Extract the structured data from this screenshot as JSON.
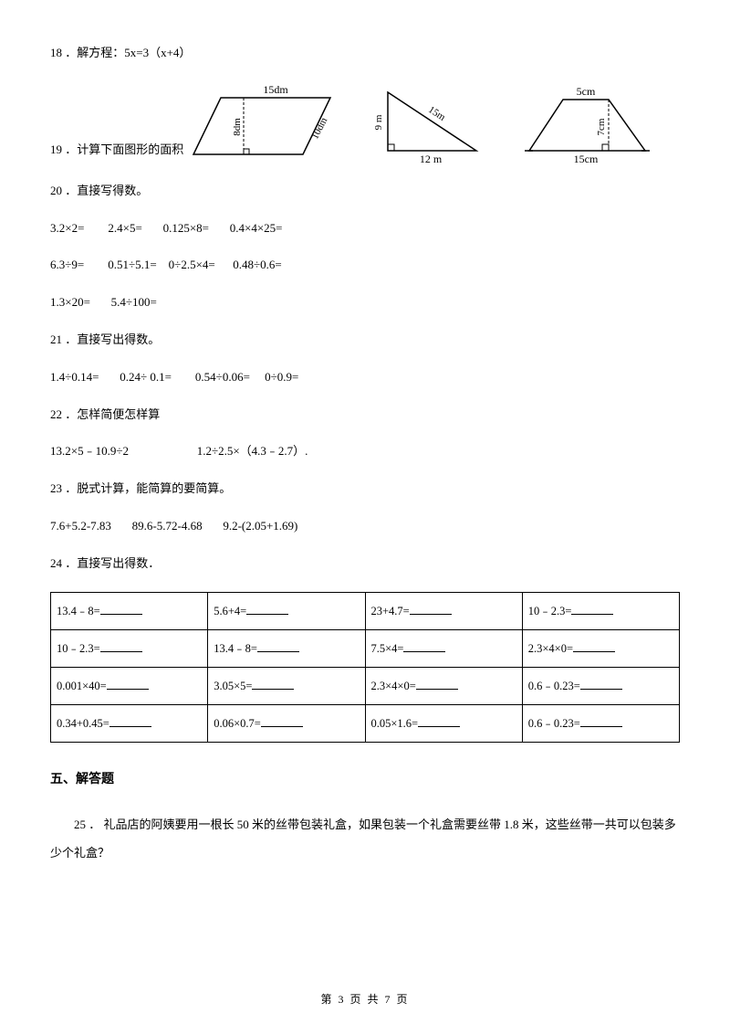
{
  "q18": {
    "label": "18 ．解方程：5x=3（x+4）"
  },
  "q19": {
    "label": "19 ．计算下面图形的面积",
    "shapes": {
      "parallelogram": {
        "top": "15dm",
        "right": "10dm",
        "height": "8dm"
      },
      "triangle": {
        "left": "9 m",
        "hyp": "15m",
        "base": "12 m"
      },
      "trapezoid": {
        "top": "5cm",
        "height": "7cm",
        "base": "15cm"
      }
    }
  },
  "q20": {
    "label": "20 ．直接写得数。",
    "row1": "3.2×2=        2.4×5=       0.125×8=       0.4×4×25=",
    "row2": "6.3÷9=        0.51÷5.1=    0÷2.5×4=      0.48÷0.6=",
    "row3": "1.3×20=       5.4÷100="
  },
  "q21": {
    "label": "21 ．直接写出得数。",
    "row1": "1.4÷0.14=       0.24÷ 0.1=        0.54÷0.06=     0÷0.9="
  },
  "q22": {
    "label": "22 ．怎样简便怎样算",
    "row1": "13.2×5﹣10.9÷2                       1.2÷2.5×（4.3﹣2.7）."
  },
  "q23": {
    "label": "23 ．脱式计算，能简算的要简算。",
    "row1": "7.6+5.2-7.83       89.6-5.72-4.68       9.2-(2.05+1.69)"
  },
  "q24": {
    "label": "24 ．直接写出得数．",
    "rows": [
      [
        "13.4﹣8=",
        "5.6+4=",
        "23+4.7=",
        "10﹣2.3="
      ],
      [
        "10﹣2.3=",
        "13.4﹣8=",
        "7.5×4=",
        "2.3×4×0="
      ],
      [
        "0.001×40=",
        "3.05×5=",
        "2.3×4×0=",
        "0.6﹣0.23="
      ],
      [
        "0.34+0.45=",
        "0.06×0.7=",
        "0.05×1.6=",
        "0.6﹣0.23="
      ]
    ]
  },
  "section5": {
    "heading": "五、解答题"
  },
  "q25": {
    "text": "25 ． 礼品店的阿姨要用一根长 50 米的丝带包装礼盒，如果包装一个礼盒需要丝带 1.8 米，这些丝带一共可以包装多少个礼盒？"
  },
  "footer": "第 3 页 共 7 页",
  "colors": {
    "text": "#000000",
    "bg": "#ffffff",
    "border": "#000000"
  }
}
